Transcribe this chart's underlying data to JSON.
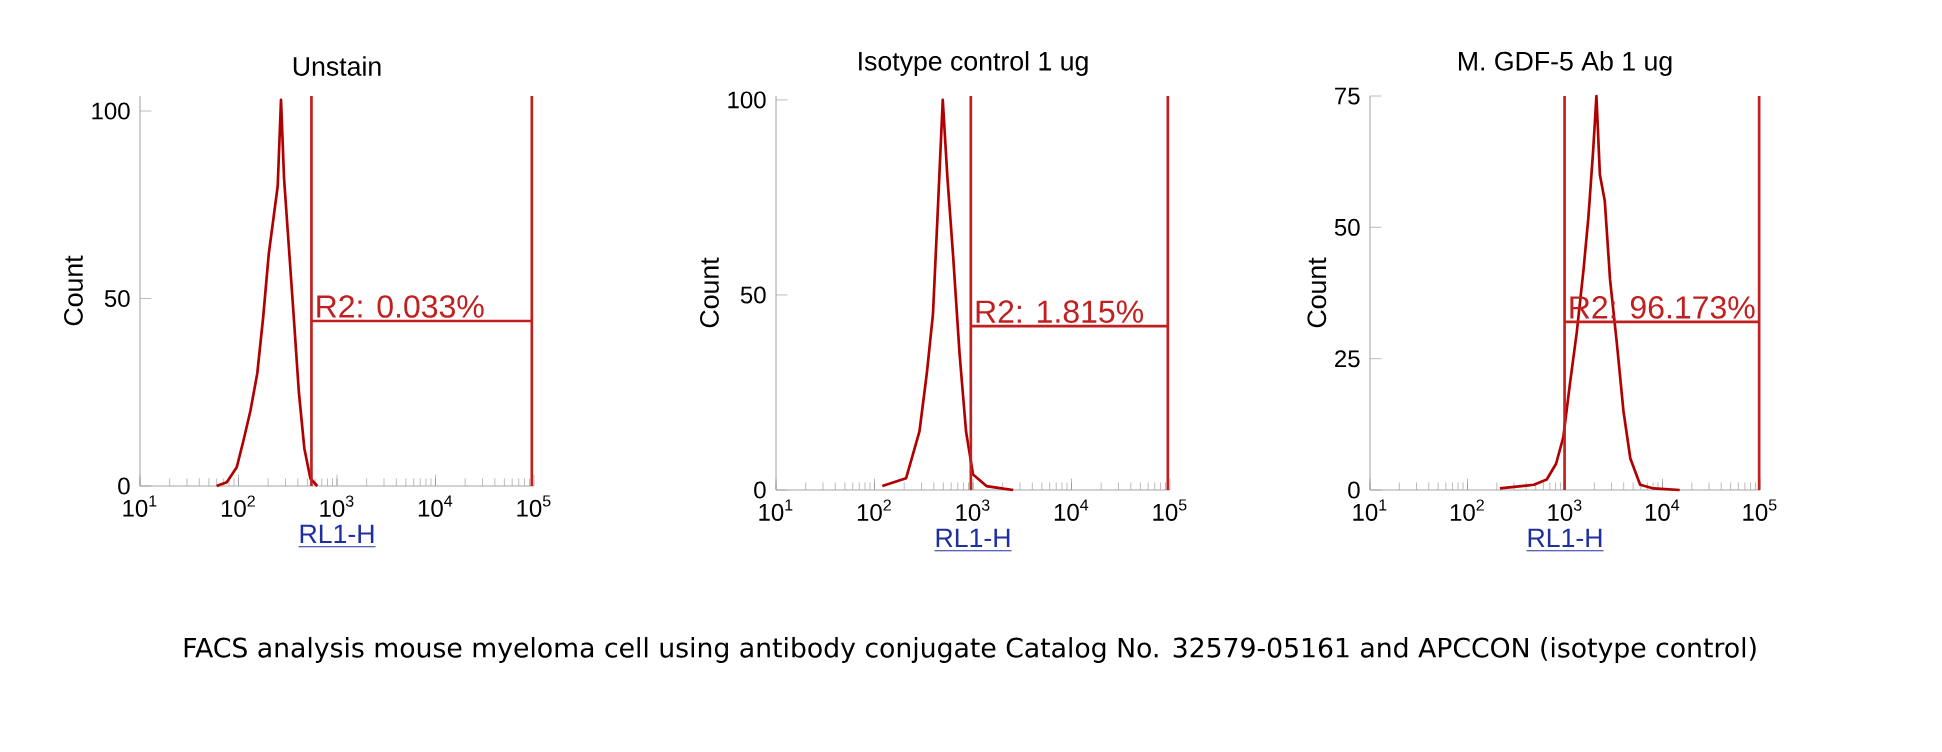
{
  "chart_data": [
    {
      "type": "line",
      "title": "Unstain",
      "xlabel": "RL1-H",
      "ylabel": "Count",
      "log": "x",
      "xlim": [
        10,
        100000
      ],
      "xticks": [
        {
          "value": 10,
          "label": "10$^{1}$"
        },
        {
          "value": 100,
          "label": "10$^{2}$"
        },
        {
          "value": 1000,
          "label": "10$^{3}$"
        },
        {
          "value": 10000,
          "label": "10$^{4}$"
        },
        {
          "value": 100000,
          "label": "10$^{5}$"
        }
      ],
      "ylim": [
        0,
        104
      ],
      "yticks": [
        0,
        50,
        100
      ],
      "series": [
        {
          "color": "#b00000",
          "x": [
            60,
            76,
            96,
            112,
            132,
            155,
            178,
            203,
            228,
            250,
            270,
            290,
            322,
            364,
            410,
            466,
            537,
            630
          ],
          "values": [
            0,
            1,
            5,
            12,
            20,
            30,
            45,
            62,
            72,
            80,
            103,
            82,
            65,
            45,
            25,
            10,
            2,
            0
          ]
        },
        {
          "type": "line",
          "color": "#c02020",
          "x": [
            550,
            95000
          ],
          "values": [
            44,
            44
          ]
        }
      ],
      "ref_lines": [
        {
          "axis": "x",
          "value": 550,
          "color": "#c02020"
        },
        {
          "axis": "x",
          "value": 95000,
          "color": "#c02020"
        }
      ],
      "annotations": [
        {
          "text": "R2: 0.033%",
          "x": 550,
          "y": 44
        },
        "FACS analysis mouse myeloma cell using antibody conjugate Catalog No. 32579-05161 and APCCON (isotype control)"
      ]
    },
    {
      "type": "line",
      "title": "Isotype control 1 ug",
      "xlabel": "RL1-H",
      "ylabel": "Count",
      "log": "x",
      "xlim": [
        10,
        100000
      ],
      "xticks": [
        {
          "value": 10,
          "label": "10$^{1}$"
        },
        {
          "value": 100,
          "label": "10$^{2}$"
        },
        {
          "value": 1000,
          "label": "10$^{3}$"
        },
        {
          "value": 10000,
          "label": "10$^{4}$"
        },
        {
          "value": 100000,
          "label": "10$^{5}$"
        }
      ],
      "ylim": [
        0,
        101
      ],
      "yticks": [
        0,
        50,
        100
      ],
      "series": [
        {
          "color": "#b00000",
          "x": [
            120,
            209,
            286,
            340,
            392,
            436,
            493,
            550,
            628,
            730,
            850,
            1000,
            1370,
            1860,
            2560
          ],
          "values": [
            1,
            3,
            15,
            30,
            45,
            70,
            100,
            80,
            60,
            35,
            15,
            4,
            1,
            0.5,
            0
          ]
        },
        {
          "type": "line",
          "color": "#c02020",
          "x": [
            950,
            95000
          ],
          "values": [
            42,
            42
          ]
        }
      ],
      "ref_lines": [
        {
          "axis": "x",
          "value": 950,
          "color": "#c02020"
        },
        {
          "axis": "x",
          "value": 95000,
          "color": "#c02020"
        }
      ],
      "annotations": [
        {
          "text": "R2: 1.815%",
          "x": 950,
          "y": 42
        }
      ]
    },
    {
      "type": "line",
      "title": "M. GDF-5 Ab 1 ug",
      "xlabel": "RL1-H",
      "ylabel": "Count",
      "log": "x",
      "xlim": [
        10,
        100000
      ],
      "xticks": [
        {
          "value": 10,
          "label": "10$^{1}$"
        },
        {
          "value": 100,
          "label": "10$^{2}$"
        },
        {
          "value": 1000,
          "label": "10$^{3}$"
        },
        {
          "value": 10000,
          "label": "10$^{4}$"
        },
        {
          "value": 100000,
          "label": "10$^{5}$"
        }
      ],
      "ylim": [
        0,
        75
      ],
      "yticks": [
        0,
        25,
        50,
        75
      ],
      "series": [
        {
          "color": "#b00000",
          "x": [
            215,
            480,
            650,
            810,
            960,
            1120,
            1320,
            1550,
            1740,
            1950,
            2100,
            2280,
            2560,
            2900,
            3400,
            3980,
            4680,
            5900,
            8100,
            15000
          ],
          "values": [
            0.3,
            1,
            2,
            5,
            10,
            20,
            30,
            42,
            52,
            65,
            75,
            60,
            55,
            40,
            28,
            15,
            6,
            1,
            0.3,
            0
          ]
        },
        {
          "type": "line",
          "color": "#c02020",
          "x": [
            990,
            98000
          ],
          "values": [
            32,
            32
          ]
        }
      ],
      "ref_lines": [
        {
          "axis": "x",
          "value": 990,
          "color": "#c02020"
        },
        {
          "axis": "x",
          "value": 98000,
          "color": "#c02020"
        }
      ],
      "annotations": [
        {
          "text": "R2: 96.173%",
          "x": 990,
          "y": 32
        }
      ]
    }
  ]
}
